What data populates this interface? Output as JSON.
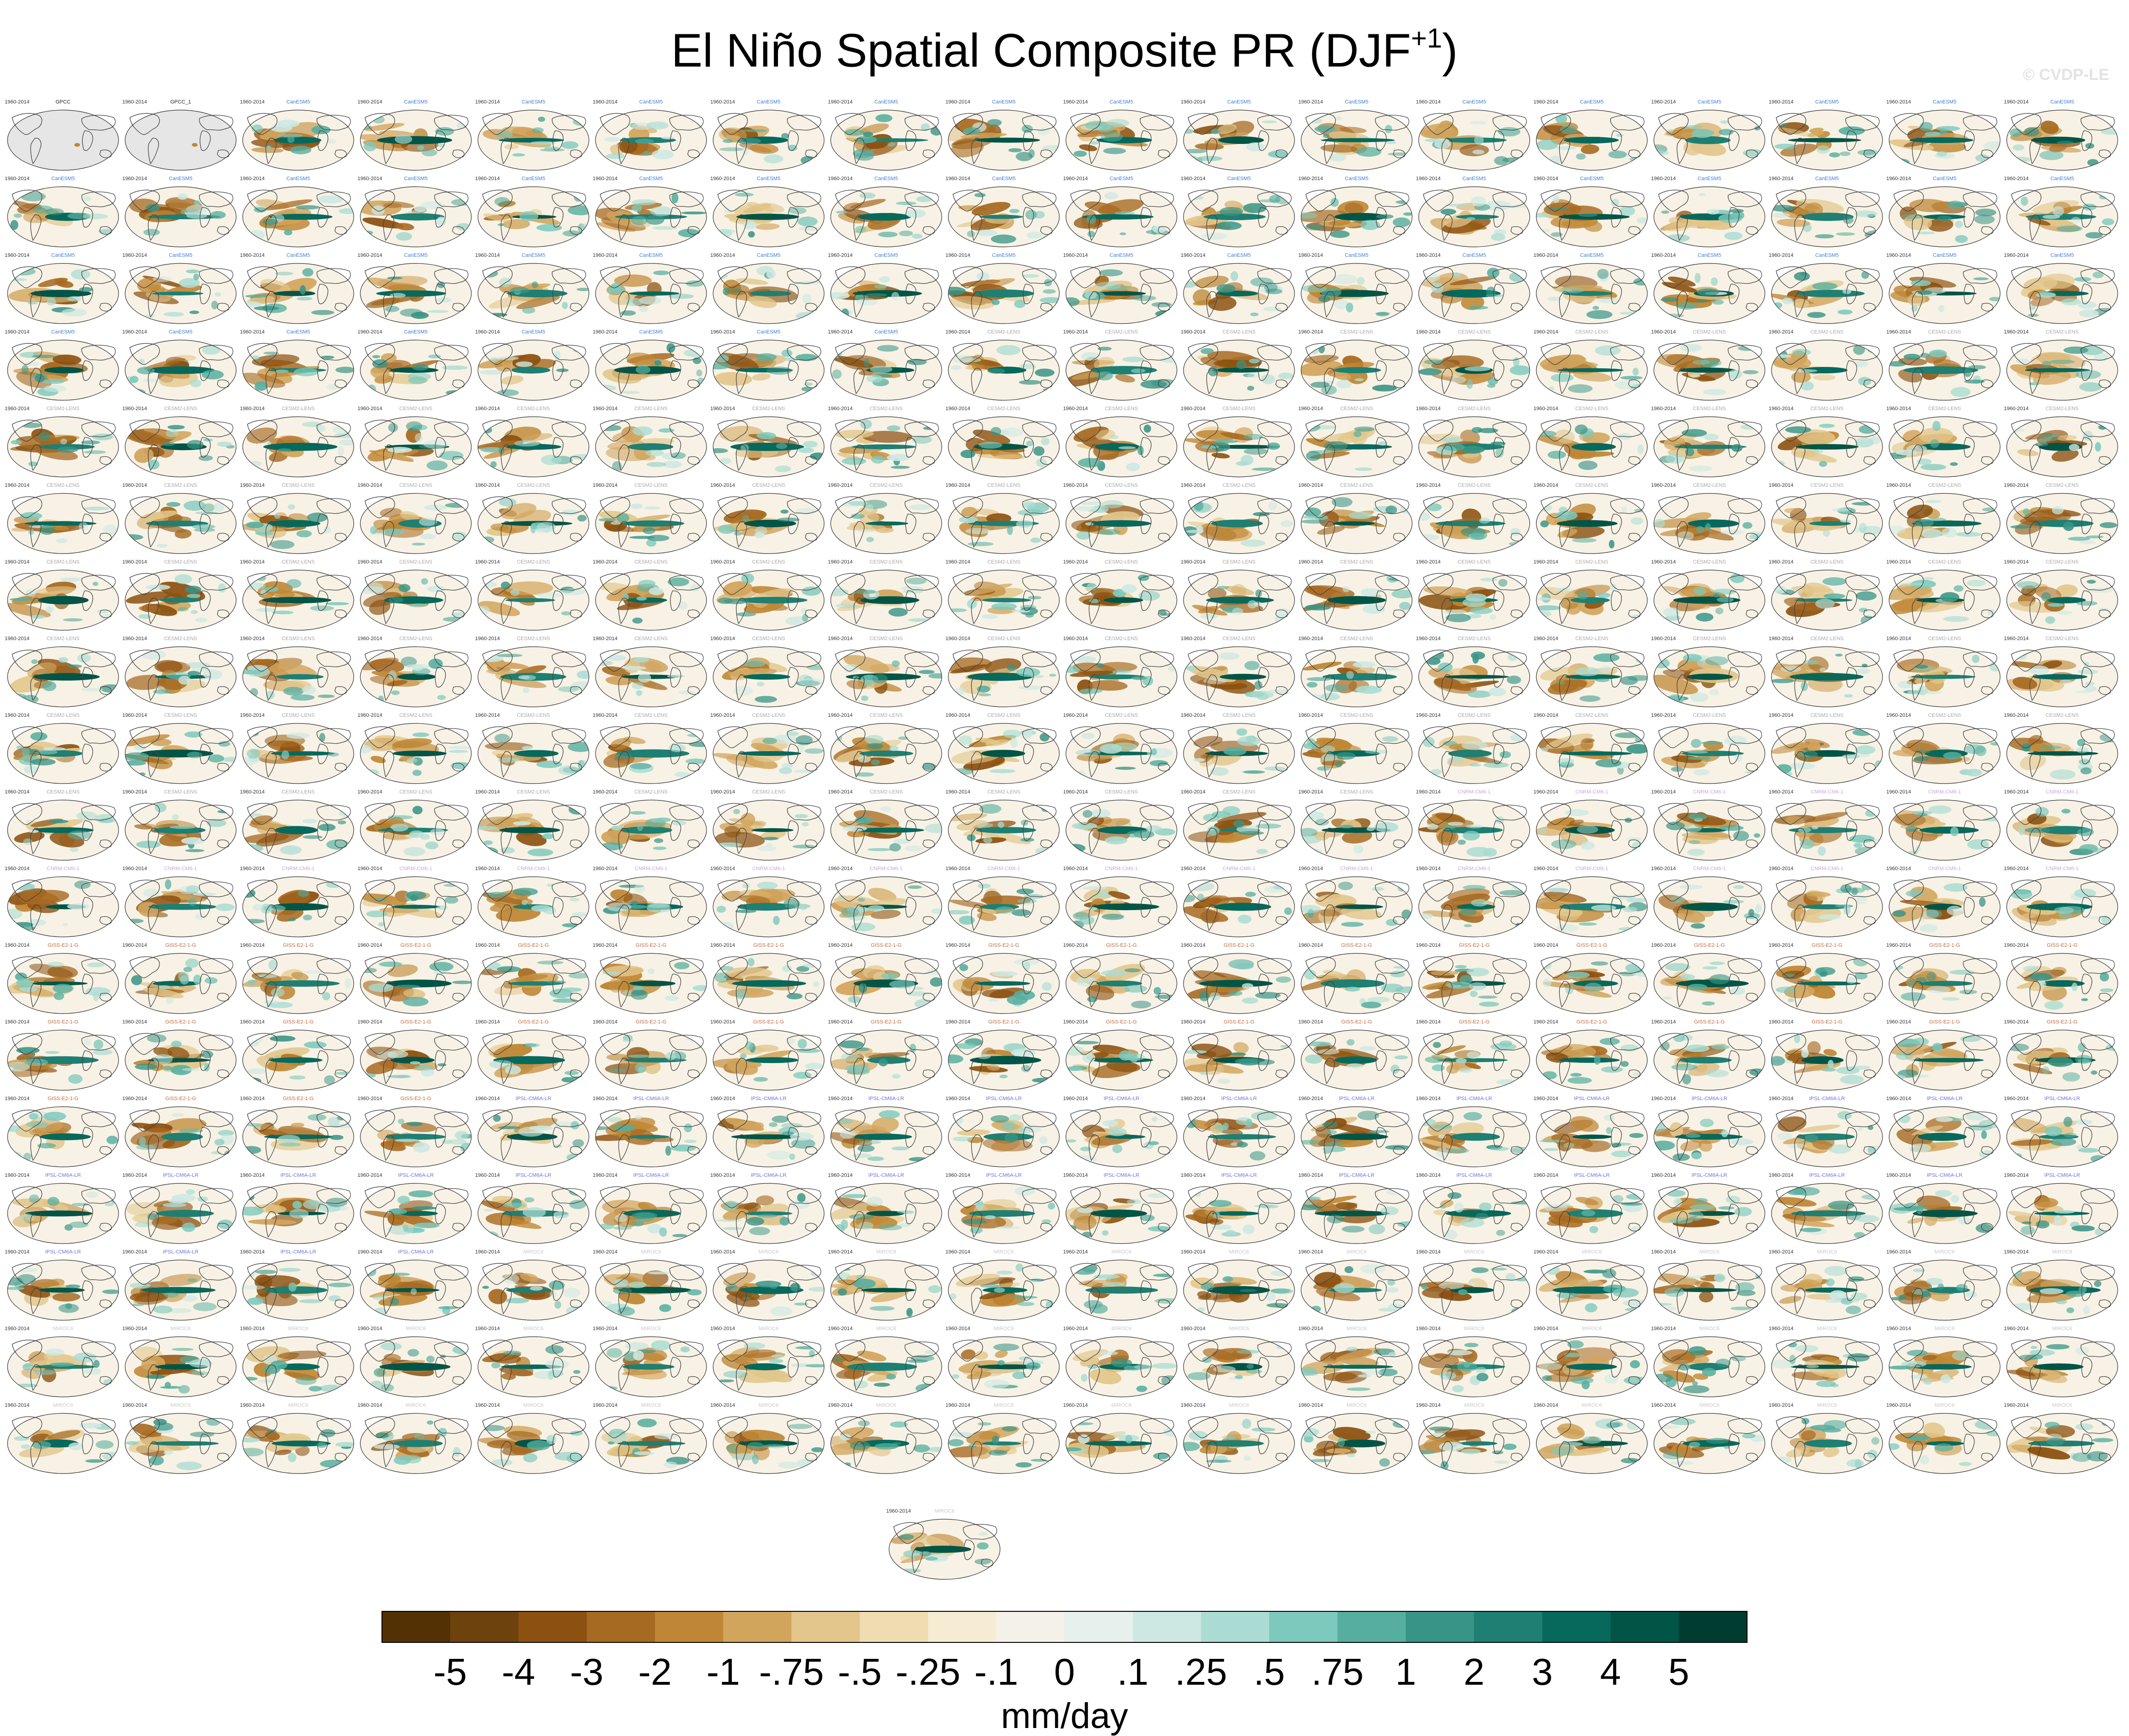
{
  "figure": {
    "title_main": "El Niño Spatial Composite PR (DJF",
    "title_sup": "+1",
    "title_close": ")",
    "copyright": "© CVDP-LE"
  },
  "chart_data": {
    "type": "heatmap",
    "title": "El Niño Spatial Composite PR (DJF+1)",
    "description_kind": "small-multiple global maps (one per dataset / ensemble member)",
    "units": "mm/day",
    "grid_rows": 18,
    "grid_cols": 18,
    "extra_panel_count": 1,
    "panel_count": 325,
    "observation_panels": [
      {
        "title": "GPCC",
        "years_left": "1960-2014"
      },
      {
        "title": "GPCC_1",
        "years_left": "1960-2014"
      }
    ],
    "panel_year_label": "1960-2014",
    "model_groups": [
      {
        "name": "CanESM5",
        "title_color": "#3b7dd8",
        "first_panel": 3
      },
      {
        "name": "CESM2-LENS",
        "title_color": "#a8a8a8",
        "first_panel": 63
      },
      {
        "name": "CNRM-CM6-1",
        "title_color": "#c7a7d8",
        "first_panel": 175
      },
      {
        "name": "GISS-E2-1-G",
        "title_color": "#c46a3a",
        "first_panel": 199
      },
      {
        "name": "IPSL-CM6A-LR",
        "title_color": "#6f6fe0",
        "first_panel": 239
      },
      {
        "name": "MIROC6",
        "title_color": "#c8c8c8",
        "first_panel": 275
      }
    ],
    "colorbar": {
      "tick_labels": [
        "-5",
        "-4",
        "-3",
        "-2",
        "-1",
        "-.75",
        "-.5",
        "-.25",
        "-.1",
        "0",
        ".1",
        ".25",
        ".5",
        ".75",
        "1",
        "2",
        "3",
        "4",
        "5"
      ],
      "colors": [
        "#543005",
        "#6e420d",
        "#8c5110",
        "#a76a22",
        "#bf8735",
        "#d2a55d",
        "#e2c68b",
        "#efdcb0",
        "#f6ebd3",
        "#f4f1e9",
        "#e6f1ee",
        "#cde8e3",
        "#aadcd3",
        "#7ec9bd",
        "#55ae9f",
        "#389486",
        "#1e7f72",
        "#06695c",
        "#015547",
        "#003c30"
      ],
      "units_label": "mm/day"
    }
  }
}
